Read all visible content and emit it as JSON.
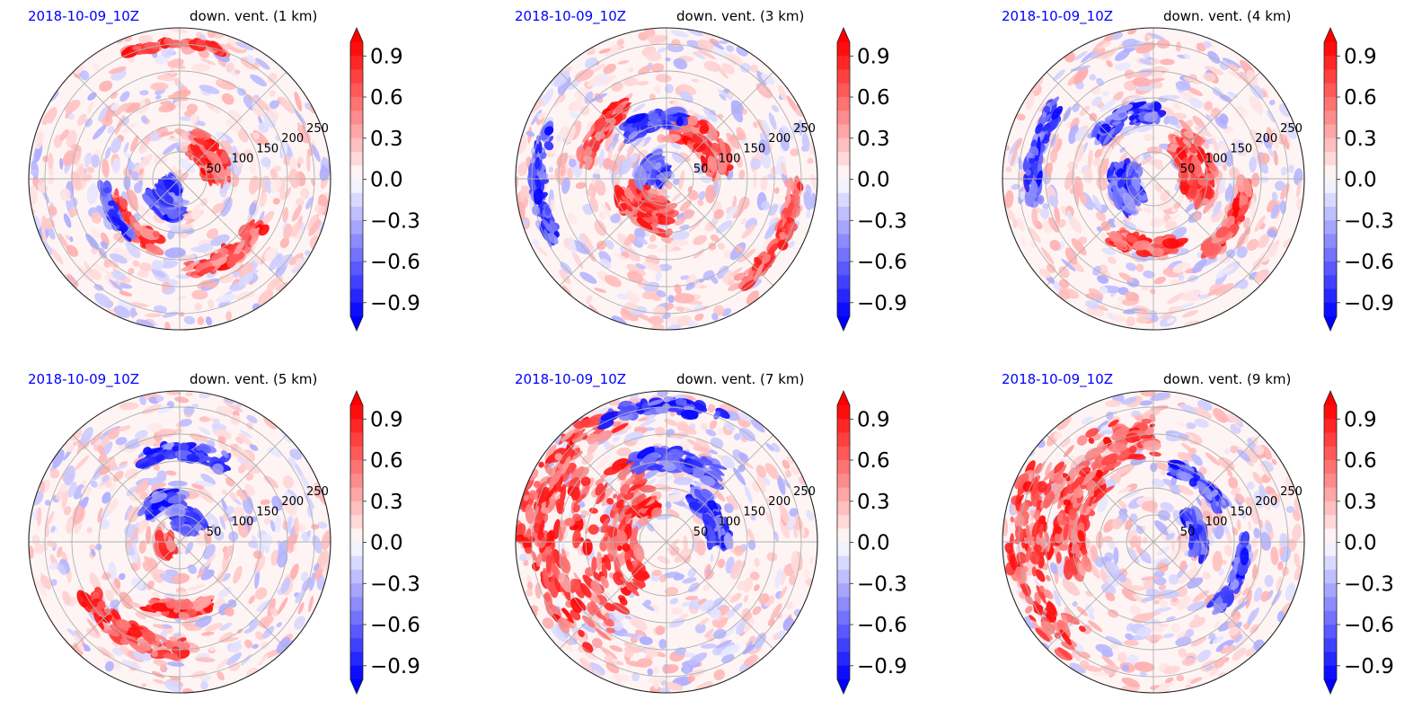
{
  "chart_data": [
    {
      "type": "heatmap",
      "projection": "polar",
      "date": "2018-10-09_10Z",
      "title": "down. vent. (1 km)",
      "radial_ticks": [
        50,
        100,
        150,
        200,
        250
      ],
      "radial_range": [
        0,
        280
      ],
      "colorbar": {
        "ticks": [
          "0.9",
          "0.6",
          "0.3",
          "0.0",
          "−0.3",
          "−0.6",
          "−0.9"
        ],
        "tick_values": [
          0.9,
          0.6,
          0.3,
          0.0,
          -0.3,
          -0.6,
          -0.9
        ],
        "range": [
          -1.0,
          1.0
        ],
        "extend": "both",
        "colormap": "bwr"
      },
      "grid": true,
      "seed": 11,
      "features": {
        "red": [
          [
            0.9,
            1.6,
            0.05
          ],
          [
            0.25,
            0.6,
            0.2
          ],
          [
            0.6,
            5.3,
            0.12
          ],
          [
            0.45,
            3.9,
            0.12
          ]
        ],
        "blue": [
          [
            0.08,
            3.9,
            0.1
          ],
          [
            0.5,
            3.6,
            0.05
          ],
          [
            0.2,
            4.2,
            0.15
          ]
        ]
      }
    },
    {
      "type": "heatmap",
      "projection": "polar",
      "date": "2018-10-09_10Z",
      "title": "down. vent. (3 km)",
      "radial_ticks": [
        50,
        100,
        150,
        200,
        250
      ],
      "radial_range": [
        0,
        280
      ],
      "colorbar": {
        "ticks": [
          "0.9",
          "0.6",
          "0.3",
          "0.0",
          "−0.3",
          "−0.6",
          "−0.9"
        ],
        "tick_values": [
          0.9,
          0.6,
          0.3,
          0.0,
          -0.3,
          -0.6,
          -0.9
        ],
        "range": [
          -1.0,
          1.0
        ],
        "extend": "both",
        "colormap": "bwr"
      },
      "grid": true,
      "seed": 23,
      "features": {
        "red": [
          [
            0.25,
            4.1,
            0.25
          ],
          [
            0.55,
            2.5,
            0.1
          ],
          [
            0.35,
            0.8,
            0.2
          ],
          [
            0.85,
            5.8,
            0.1
          ]
        ],
        "blue": [
          [
            0.1,
            2.6,
            0.2
          ],
          [
            0.4,
            1.8,
            0.12
          ],
          [
            0.85,
            3.2,
            0.1
          ]
        ]
      }
    },
    {
      "type": "heatmap",
      "projection": "polar",
      "date": "2018-10-09_10Z",
      "title": "down. vent. (4 km)",
      "radial_ticks": [
        50,
        100,
        150,
        200,
        250
      ],
      "radial_range": [
        0,
        280
      ],
      "colorbar": {
        "ticks": [
          "0.9",
          "0.6",
          "0.3",
          "0.0",
          "−0.3",
          "−0.6",
          "−0.9"
        ],
        "tick_values": [
          0.9,
          0.6,
          0.3,
          0.0,
          -0.3,
          -0.6,
          -0.9
        ],
        "range": [
          -1.0,
          1.0
        ],
        "extend": "both",
        "colormap": "bwr"
      },
      "grid": true,
      "seed": 37,
      "features": {
        "red": [
          [
            0.3,
            0.3,
            0.25
          ],
          [
            0.45,
            4.6,
            0.12
          ],
          [
            0.6,
            5.8,
            0.1
          ]
        ],
        "blue": [
          [
            0.45,
            2.0,
            0.12
          ],
          [
            0.2,
            3.4,
            0.2
          ],
          [
            0.8,
            2.9,
            0.1
          ]
        ]
      }
    },
    {
      "type": "heatmap",
      "projection": "polar",
      "date": "2018-10-09_10Z",
      "title": "down. vent. (5 km)",
      "radial_ticks": [
        50,
        100,
        150,
        200,
        250
      ],
      "radial_range": [
        0,
        280
      ],
      "colorbar": {
        "ticks": [
          "0.9",
          "0.6",
          "0.3",
          "0.0",
          "−0.3",
          "−0.6",
          "−0.9"
        ],
        "tick_values": [
          0.9,
          0.6,
          0.3,
          0.0,
          -0.3,
          -0.6,
          -0.9
        ],
        "range": [
          -1.0,
          1.0
        ],
        "extend": "both",
        "colormap": "bwr"
      },
      "grid": true,
      "seed": 41,
      "features": {
        "red": [
          [
            0.1,
            3.3,
            0.1
          ],
          [
            0.45,
            4.7,
            0.1
          ],
          [
            0.7,
            4.2,
            0.15
          ]
        ],
        "blue": [
          [
            0.6,
            1.5,
            0.12
          ],
          [
            0.3,
            2.0,
            0.1
          ],
          [
            0.15,
            1.2,
            0.15
          ]
        ]
      }
    },
    {
      "type": "heatmap",
      "projection": "polar",
      "date": "2018-10-09_10Z",
      "title": "down. vent. (7 km)",
      "radial_ticks": [
        50,
        100,
        150,
        200,
        250
      ],
      "radial_range": [
        0,
        280
      ],
      "colorbar": {
        "ticks": [
          "0.9",
          "0.6",
          "0.3",
          "0.0",
          "−0.3",
          "−0.6",
          "−0.9"
        ],
        "tick_values": [
          0.9,
          0.6,
          0.3,
          0.0,
          -0.3,
          -0.6,
          -0.9
        ],
        "range": [
          -1.0,
          1.0
        ],
        "extend": "both",
        "colormap": "bwr"
      },
      "grid": true,
      "seed": 53,
      "features": {
        "red": [
          [
            0.4,
            3.0,
            0.45
          ],
          [
            0.75,
            3.3,
            0.3
          ],
          [
            0.9,
            2.6,
            0.2
          ]
        ],
        "blue": [
          [
            0.55,
            1.4,
            0.15
          ],
          [
            0.35,
            0.5,
            0.15
          ],
          [
            0.9,
            1.6,
            0.1
          ]
        ]
      }
    },
    {
      "type": "heatmap",
      "projection": "polar",
      "date": "2018-10-09_10Z",
      "title": "down. vent. (9 km)",
      "radial_ticks": [
        50,
        100,
        150,
        200,
        250
      ],
      "radial_range": [
        0,
        280
      ],
      "colorbar": {
        "ticks": [
          "0.9",
          "0.6",
          "0.3",
          "0.0",
          "−0.3",
          "−0.6",
          "−0.9"
        ],
        "tick_values": [
          0.9,
          0.6,
          0.3,
          0.0,
          -0.3,
          -0.6,
          -0.9
        ],
        "range": [
          -1.0,
          1.0
        ],
        "extend": "both",
        "colormap": "bwr"
      },
      "grid": true,
      "seed": 67,
      "features": {
        "red": [
          [
            0.7,
            2.4,
            0.3
          ],
          [
            0.85,
            3.3,
            0.25
          ],
          [
            0.55,
            2.9,
            0.2
          ]
        ],
        "blue": [
          [
            0.3,
            0.2,
            0.1
          ],
          [
            0.6,
            5.9,
            0.08
          ],
          [
            0.5,
            0.9,
            0.08
          ]
        ]
      }
    }
  ]
}
